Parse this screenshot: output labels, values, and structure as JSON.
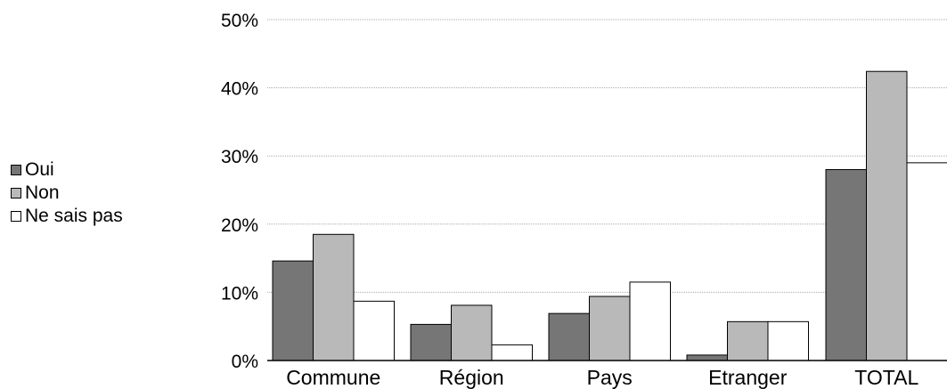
{
  "chart_data": {
    "type": "bar",
    "title": "",
    "xlabel": "",
    "ylabel": "",
    "categories": [
      "Commune",
      "Région",
      "Pays",
      "Etranger",
      "TOTAL"
    ],
    "series": [
      {
        "name": "Oui",
        "values": [
          14.6,
          5.3,
          6.9,
          0.8,
          28.0
        ],
        "color": "#767676"
      },
      {
        "name": "Non",
        "values": [
          18.5,
          8.1,
          9.4,
          5.7,
          42.4
        ],
        "color": "#b9b9b9"
      },
      {
        "name": "Ne sais pas",
        "values": [
          8.7,
          2.3,
          11.5,
          5.7,
          29.0
        ],
        "color": "#ffffff"
      }
    ],
    "ylim": [
      0,
      50
    ],
    "yticks": [
      0,
      10,
      20,
      30,
      40,
      50
    ],
    "ytick_labels": [
      "0%",
      "10%",
      "20%",
      "30%",
      "40%",
      "50%"
    ],
    "grid": true,
    "legend_position": "left"
  }
}
